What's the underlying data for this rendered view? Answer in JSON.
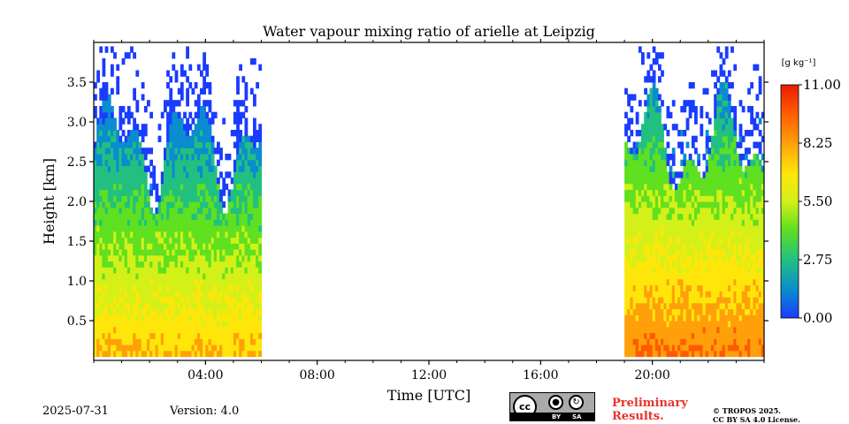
{
  "chart_data": {
    "type": "heatmap",
    "title": "Water vapour mixing ratio of arielle at Leipzig",
    "xlabel": "Time [UTC]",
    "ylabel": "Height [km]",
    "x_unit": "hours UTC",
    "xlim": [
      0,
      24
    ],
    "ylim": [
      0,
      4.0
    ],
    "x_ticks": [
      "04:00",
      "08:00",
      "12:00",
      "16:00",
      "20:00"
    ],
    "x_tick_values": [
      4,
      8,
      12,
      16,
      20
    ],
    "y_ticks": [
      "0.5",
      "1.0",
      "1.5",
      "2.0",
      "2.5",
      "3.0",
      "3.5"
    ],
    "y_tick_values": [
      0.5,
      1.0,
      1.5,
      2.0,
      2.5,
      3.0,
      3.5
    ],
    "colorbar": {
      "label": "[g kg⁻¹]",
      "min": 0.0,
      "max": 11.0,
      "ticks": [
        "11.00",
        "8.25",
        "5.50",
        "2.75",
        "0.00"
      ],
      "tick_values": [
        11.0,
        8.25,
        5.5,
        2.75,
        0.0
      ],
      "colormap": [
        "#1a3cff",
        "#0a8ccf",
        "#22c080",
        "#5fe020",
        "#d4f019",
        "#ffe60a",
        "#ffa00a",
        "#ff5a00",
        "#e81b00"
      ]
    },
    "data_segments": [
      {
        "start": "00:00",
        "end": "06:00",
        "top_km": 3.95,
        "lower_layer_value": 7.7
      },
      {
        "start": "19:00",
        "end": "24:00",
        "top_km": 3.95,
        "lower_layer_value": 9.1
      }
    ],
    "grid": false
  },
  "footer": {
    "date": "2025-07-31",
    "version": "Version: 4.0",
    "preliminary": "Preliminary\nResults.",
    "copyright_line1": "© TROPOS 2025.",
    "copyright_line2": "CC BY SA 4.0 License.",
    "cc_label": "cc",
    "cc_by": "BY",
    "cc_sa": "SA"
  },
  "colors": {
    "preliminary_red": "#e8322c"
  }
}
